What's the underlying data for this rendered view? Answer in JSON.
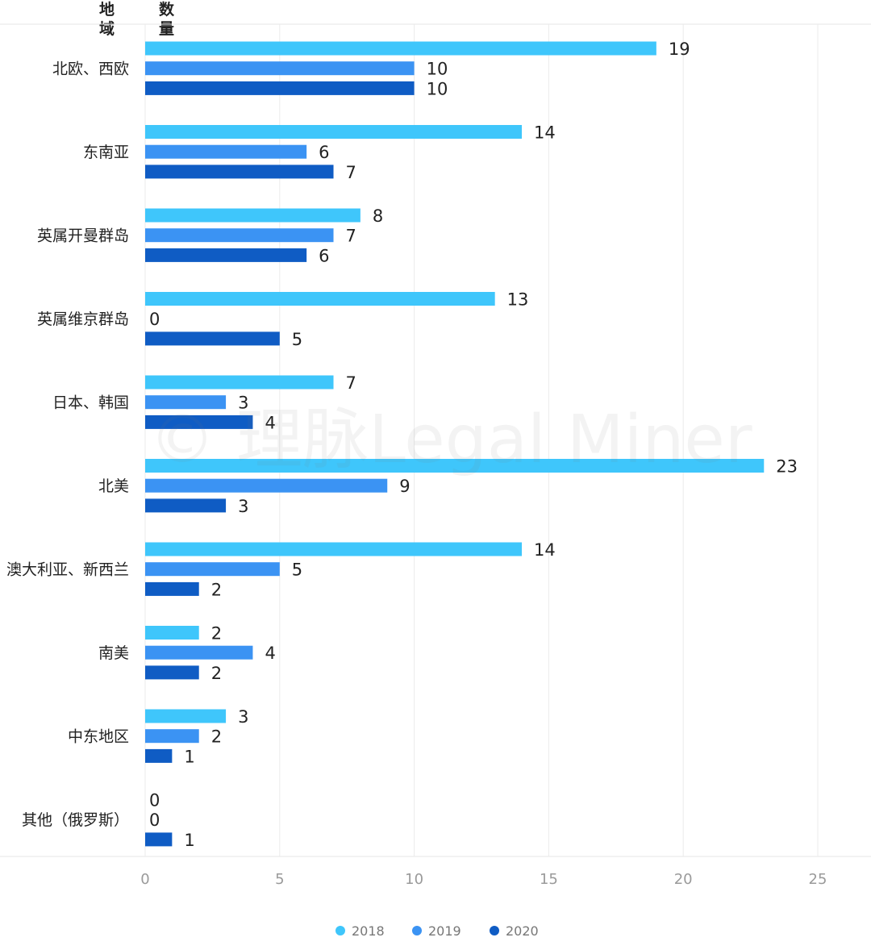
{
  "header": {
    "col1": "地域",
    "col2": "数量"
  },
  "watermark": "© 理脉Legal Miner",
  "chart_data": {
    "type": "bar",
    "orientation": "horizontal",
    "categories": [
      "北欧、西欧",
      "东南亚",
      "英属开曼群岛",
      "英属维京群岛",
      "日本、韩国",
      "北美",
      "澳大利亚、新西兰",
      "南美",
      "中东地区",
      "其他（俄罗斯）"
    ],
    "series": [
      {
        "name": "2018",
        "color": "#3fc6fb",
        "values": [
          19,
          14,
          8,
          13,
          7,
          23,
          14,
          2,
          3,
          0
        ]
      },
      {
        "name": "2019",
        "color": "#3b93f3",
        "values": [
          10,
          6,
          7,
          0,
          3,
          9,
          5,
          4,
          2,
          0
        ]
      },
      {
        "name": "2020",
        "color": "#0f5cc4",
        "values": [
          10,
          7,
          6,
          5,
          4,
          3,
          2,
          2,
          1,
          1
        ]
      }
    ],
    "xlim": [
      0,
      25
    ],
    "xticks": [
      0,
      5,
      10,
      15,
      20,
      25
    ],
    "grid": true,
    "legend_position": "bottom-center",
    "data_labels": true
  }
}
